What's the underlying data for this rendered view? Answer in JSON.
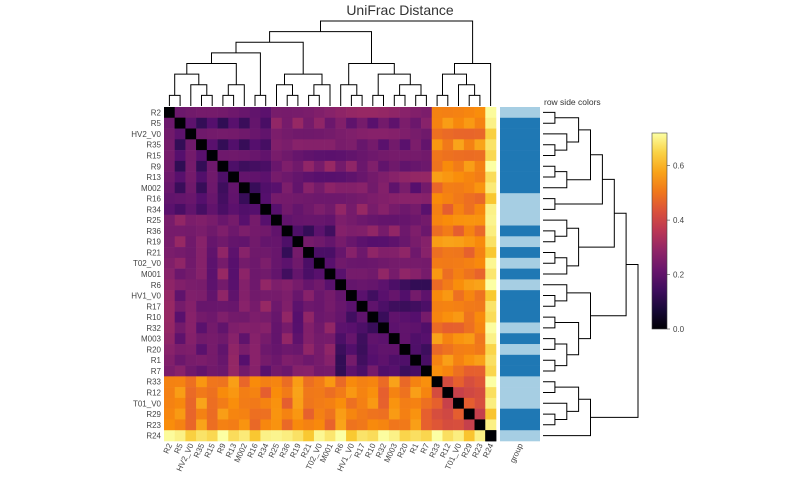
{
  "chart_data": {
    "type": "heatmap",
    "title": "UniFrac Distance",
    "labels": [
      "R2",
      "R5",
      "HV2_V0",
      "R35",
      "R15",
      "R9",
      "R13",
      "M002",
      "R16",
      "R34",
      "R25",
      "R36",
      "R19",
      "R21",
      "T02_V0",
      "M001",
      "R6",
      "HV1_V0",
      "R17",
      "R10",
      "R32",
      "M003",
      "R20",
      "R1",
      "R7",
      "R33",
      "R12",
      "T01_V0",
      "R29",
      "R23",
      "R24"
    ],
    "groups": [
      0,
      1,
      1,
      1,
      1,
      1,
      1,
      1,
      0,
      0,
      0,
      1,
      0,
      1,
      0,
      1,
      0,
      1,
      1,
      1,
      0,
      1,
      0,
      1,
      1,
      0,
      0,
      0,
      1,
      1,
      0
    ],
    "group_label": "group",
    "row_side_label": "row side colors",
    "group_colors": [
      "#a6cee3",
      "#1f78b4"
    ],
    "clusters": [
      [
        0,
        9
      ],
      [
        10,
        15
      ],
      [
        16,
        24
      ],
      [
        25,
        29
      ],
      [
        30,
        30
      ]
    ],
    "levels": {
      "same_cluster": 0.18,
      "between_clusters": 0.24,
      "with_outliers": 0.52,
      "outliers_pair": 0.42,
      "with_r24": 0.68
    },
    "colorbar": {
      "min": 0.0,
      "max": 0.72,
      "ticks": [
        0.0,
        0.2,
        0.4,
        0.6
      ]
    },
    "colorscale": "inferno",
    "diagonal_value": 0.0
  }
}
